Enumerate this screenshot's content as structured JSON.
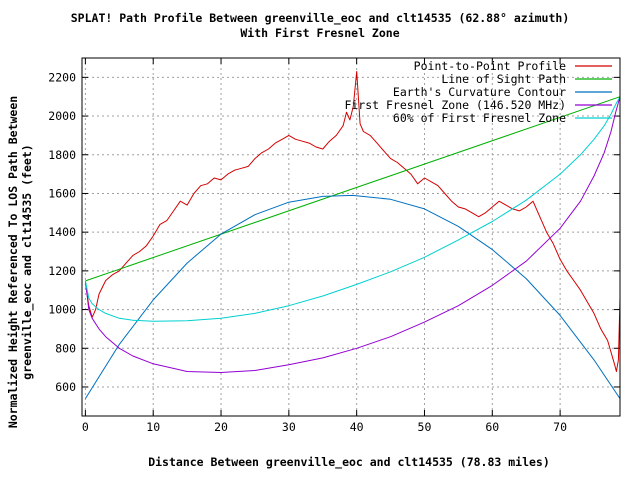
{
  "chart_data": {
    "type": "line",
    "title": "SPLAT! Path Profile Between greenville_eoc and clt14535 (62.88° azimuth)",
    "subtitle": "With First Fresnel Zone",
    "xlabel": "Distance Between greenville_eoc and clt14535 (78.83 miles)",
    "ylabel_line1": "Normalized Height Referenced To LOS Path Between",
    "ylabel_line2": "greenville_eoc and clt14535 (feet)",
    "xlim": [
      -0.5,
      78.83
    ],
    "ylim": [
      450,
      2300
    ],
    "xticks": [
      0,
      10,
      20,
      30,
      40,
      50,
      60,
      70
    ],
    "yticks": [
      600,
      800,
      1000,
      1200,
      1400,
      1600,
      1800,
      2000,
      2200
    ],
    "grid": true,
    "legend_position": "top-right",
    "series": [
      {
        "name": "Point-to-Point Profile",
        "color": "#d40000",
        "x": [
          0,
          0.5,
          1,
          1.5,
          2,
          3,
          4,
          5,
          6,
          7,
          8,
          9,
          10,
          11,
          12,
          13,
          14,
          15,
          16,
          17,
          18,
          19,
          20,
          21,
          22,
          23,
          24,
          25,
          26,
          27,
          28,
          29,
          30,
          31,
          32,
          33,
          34,
          35,
          36,
          37,
          38,
          38.5,
          39,
          39.5,
          40,
          40.5,
          41,
          42,
          43,
          44,
          45,
          46,
          47,
          48,
          49,
          50,
          51,
          52,
          53,
          54,
          55,
          56,
          57,
          58,
          59,
          60,
          61,
          62,
          63,
          64,
          65,
          66,
          67,
          68,
          69,
          70,
          71,
          72,
          73,
          74,
          75,
          76,
          77,
          77.5,
          78,
          78.3,
          78.6,
          78.83
        ],
        "values": [
          1140,
          1020,
          960,
          1000,
          1080,
          1150,
          1180,
          1200,
          1240,
          1280,
          1300,
          1330,
          1380,
          1440,
          1460,
          1510,
          1560,
          1540,
          1600,
          1640,
          1650,
          1680,
          1670,
          1700,
          1720,
          1730,
          1740,
          1780,
          1810,
          1830,
          1860,
          1880,
          1900,
          1880,
          1870,
          1860,
          1840,
          1830,
          1870,
          1900,
          1950,
          2020,
          1980,
          2050,
          2230,
          1960,
          1920,
          1900,
          1860,
          1820,
          1780,
          1760,
          1730,
          1700,
          1650,
          1680,
          1660,
          1640,
          1600,
          1560,
          1530,
          1520,
          1500,
          1480,
          1500,
          1530,
          1560,
          1540,
          1520,
          1510,
          1530,
          1560,
          1480,
          1400,
          1340,
          1260,
          1200,
          1150,
          1100,
          1040,
          980,
          900,
          840,
          780,
          720,
          680,
          740,
          1060
        ]
      },
      {
        "name": "Line of Sight Path",
        "color": "#00b000",
        "x": [
          0,
          78.83
        ],
        "values": [
          1148,
          2100
        ]
      },
      {
        "name": "Earth's Curvature Contour",
        "color": "#0070c0",
        "x": [
          0,
          5,
          10,
          15,
          20,
          25,
          30,
          35,
          39.4,
          45,
          50,
          55,
          60,
          65,
          70,
          75,
          78.83
        ],
        "values": [
          540,
          820,
          1050,
          1240,
          1390,
          1490,
          1555,
          1585,
          1590,
          1570,
          1520,
          1430,
          1310,
          1160,
          970,
          740,
          540
        ]
      },
      {
        "name": "First Fresnel Zone (146.520 MHz)",
        "color": "#9400d3",
        "x": [
          0,
          0.5,
          1,
          2,
          3,
          5,
          7,
          10,
          15,
          20,
          25,
          30,
          35,
          40,
          45,
          50,
          55,
          60,
          65,
          70,
          73,
          75,
          76.5,
          77.5,
          78.2,
          78.83
        ],
        "values": [
          1148,
          1000,
          955,
          900,
          860,
          800,
          760,
          720,
          680,
          675,
          685,
          715,
          750,
          800,
          860,
          935,
          1020,
          1125,
          1250,
          1420,
          1560,
          1690,
          1810,
          1920,
          2020,
          2100
        ]
      },
      {
        "name": "60% of First Fresnel Zone",
        "color": "#00d0d0",
        "x": [
          0,
          0.5,
          1,
          2,
          3,
          5,
          7,
          10,
          15,
          20,
          25,
          30,
          35,
          40,
          45,
          50,
          55,
          60,
          65,
          70,
          73,
          75,
          76.5,
          77.5,
          78.2,
          78.83
        ],
        "values": [
          1148,
          1060,
          1030,
          1000,
          980,
          955,
          945,
          940,
          942,
          955,
          980,
          1020,
          1070,
          1130,
          1195,
          1270,
          1360,
          1455,
          1565,
          1700,
          1800,
          1880,
          1950,
          2010,
          2060,
          2100
        ]
      }
    ]
  }
}
